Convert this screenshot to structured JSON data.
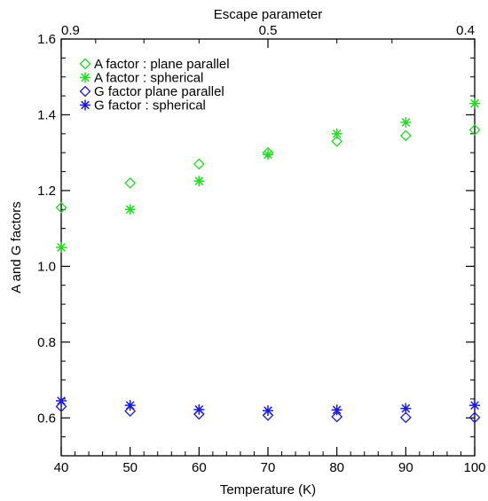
{
  "chart_data": {
    "type": "scatter",
    "xlabel": "Temperature (K)",
    "ylabel": "A and G factors",
    "top_xlabel": "Escape parameter",
    "xlim": [
      40,
      100
    ],
    "ylim": [
      0.5,
      1.6
    ],
    "x_ticks": [
      "40",
      "50",
      "60",
      "70",
      "80",
      "90",
      "100"
    ],
    "y_ticks": [
      "0.6",
      "0.8",
      "1.0",
      "1.2",
      "1.4",
      "1.6"
    ],
    "top_ticks": [
      {
        "label": "0.9",
        "at": 40
      },
      {
        "label": "0.5",
        "at": 70
      },
      {
        "label": "0.4",
        "at": 100
      }
    ],
    "grid": false,
    "legend_position": "top-left",
    "series": [
      {
        "name": "A factor : plane parallel",
        "marker": "diamond",
        "color": "#22dd22",
        "x": [
          40,
          50,
          60,
          70,
          80,
          90,
          100
        ],
        "y": [
          1.155,
          1.22,
          1.27,
          1.3,
          1.33,
          1.345,
          1.36
        ]
      },
      {
        "name": "A factor : spherical",
        "marker": "asterisk",
        "color": "#22dd22",
        "x": [
          40,
          50,
          60,
          70,
          80,
          90,
          100
        ],
        "y": [
          1.05,
          1.15,
          1.225,
          1.295,
          1.35,
          1.38,
          1.43
        ]
      },
      {
        "name": "G factor plane parallel",
        "marker": "diamond",
        "color": "#1a1add",
        "x": [
          40,
          50,
          60,
          70,
          80,
          90,
          100
        ],
        "y": [
          0.63,
          0.618,
          0.61,
          0.607,
          0.603,
          0.601,
          0.601
        ]
      },
      {
        "name": "G factor : spherical",
        "marker": "asterisk",
        "color": "#1a1add",
        "x": [
          40,
          50,
          60,
          70,
          80,
          90,
          100
        ],
        "y": [
          0.645,
          0.633,
          0.622,
          0.619,
          0.621,
          0.625,
          0.633
        ]
      }
    ]
  }
}
